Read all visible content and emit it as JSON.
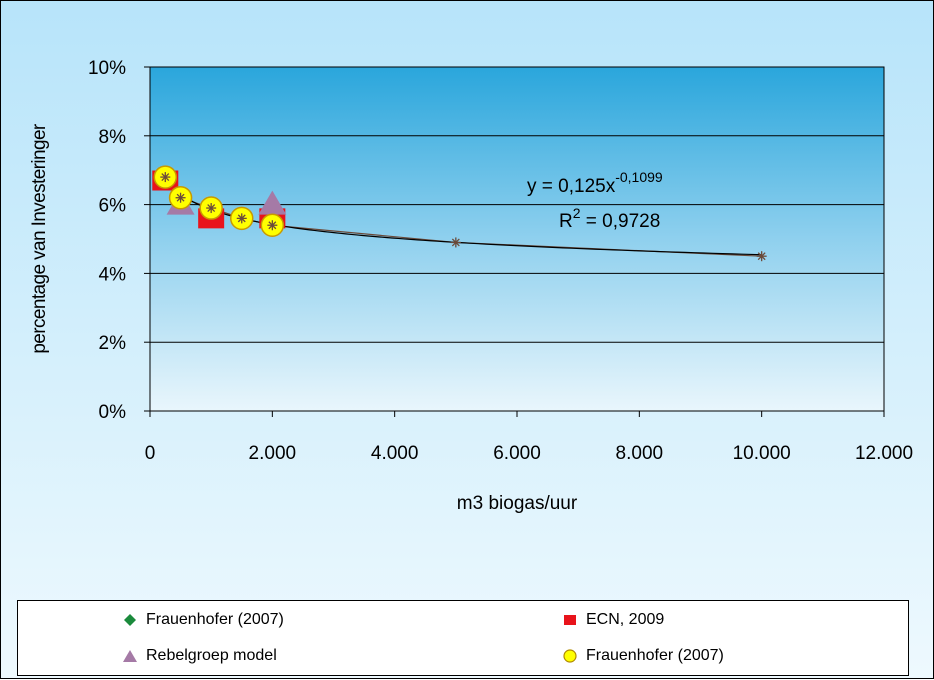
{
  "chart_data": {
    "type": "scatter",
    "xlabel": "m3 biogas/uur",
    "ylabel": "percentage van Investeringer",
    "xlim": [
      0,
      12000
    ],
    "ylim": [
      0,
      10
    ],
    "x_ticks": [
      {
        "value": 0,
        "label": "0"
      },
      {
        "value": 2000,
        "label": "2.000"
      },
      {
        "value": 4000,
        "label": "4.000"
      },
      {
        "value": 6000,
        "label": "6.000"
      },
      {
        "value": 8000,
        "label": "8.000"
      },
      {
        "value": 10000,
        "label": "10.000"
      },
      {
        "value": 12000,
        "label": "12.000"
      }
    ],
    "y_ticks": [
      {
        "value": 0,
        "label": "0%"
      },
      {
        "value": 2,
        "label": "2%"
      },
      {
        "value": 4,
        "label": "4%"
      },
      {
        "value": 6,
        "label": "6%"
      },
      {
        "value": 8,
        "label": "8%"
      },
      {
        "value": 10,
        "label": "10%"
      }
    ],
    "grid": "horizontal",
    "legend_position": "bottom",
    "series": [
      {
        "name": "Frauenhofer (2007)",
        "marker": "diamond",
        "color": "#1a8a3c",
        "x": [],
        "y": []
      },
      {
        "name": "ECN, 2009",
        "marker": "square",
        "color": "#e8131b",
        "x": [
          250,
          1000,
          2000
        ],
        "y": [
          6.7,
          5.6,
          5.6
        ]
      },
      {
        "name": "Rebelgroep model",
        "marker": "triangle",
        "color": "#a57aa6",
        "x": [
          500,
          2000
        ],
        "y": [
          6.0,
          6.0
        ]
      },
      {
        "name": "Frauenhofer (2007)",
        "marker": "circle",
        "color": "#ffff00",
        "x": [
          250,
          500,
          1000,
          1500,
          2000
        ],
        "y": [
          6.8,
          6.2,
          5.9,
          5.6,
          5.4
        ]
      }
    ],
    "trend_series": {
      "marker": "star",
      "color": "#6b4a3a",
      "x": [
        250,
        500,
        1000,
        1500,
        2000,
        5000,
        10000
      ],
      "y": [
        6.8,
        6.2,
        5.9,
        5.6,
        5.4,
        4.9,
        4.5
      ]
    },
    "trendline": {
      "a": 0.125,
      "b": -0.1099,
      "from": 250,
      "to": 10000
    },
    "annotations": {
      "equation_base": "y = 0,125x",
      "equation_exponent": "-0,1099",
      "r2_base": "R",
      "r2_exponent": "2",
      "r2_value": " = 0,9728"
    }
  }
}
